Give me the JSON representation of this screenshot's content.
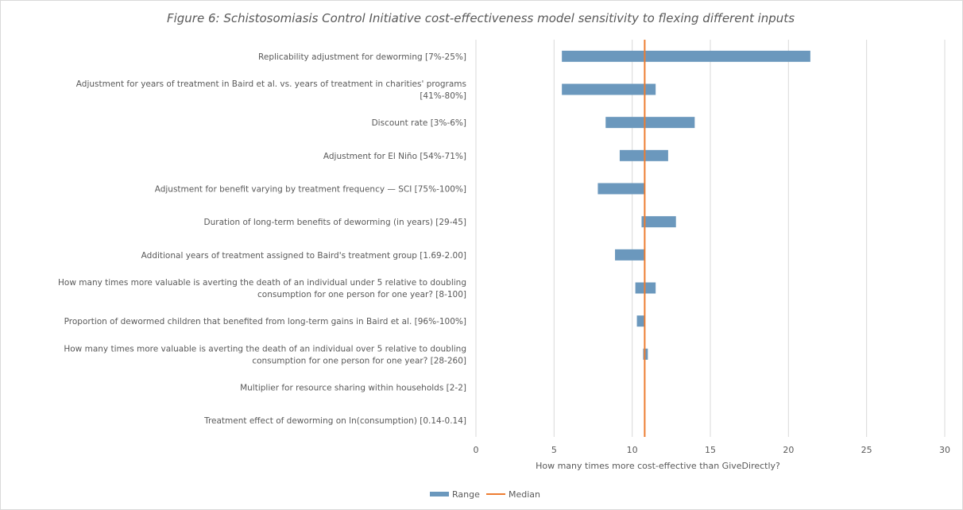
{
  "chart_data": {
    "type": "bar",
    "orientation": "horizontal",
    "style": "floating-range (tornado)",
    "title": "Figure 6: Schistosomiasis Control Initiative cost-effectiveness model sensitivity to flexing different inputs",
    "xlabel": "How many times more cost-effective  than GiveDirectly?",
    "ylabel": "",
    "xlim": [
      0,
      30
    ],
    "xticks": [
      0,
      5,
      10,
      15,
      20,
      25,
      30
    ],
    "grid": "vertical",
    "legend_position": "bottom",
    "median": 10.8,
    "categories": [
      "Replicability adjustment for deworming [7%-25%]",
      "Adjustment for years of treatment in Baird et al. vs. years of treatment in charities' programs [41%-80%]",
      "Discount rate [3%-6%]",
      "Adjustment for El Niño [54%-71%]",
      "Adjustment for benefit varying by treatment frequency — SCI [75%-100%]",
      "Duration of long-term benefits of deworming (in years) [29-45]",
      "Additional years of treatment assigned to Baird's treatment group [1.69-2.00]",
      "How many times more valuable is averting the death of an individual under 5 relative to doubling consumption for one person for one year? [8-100]",
      "Proportion of dewormed children that benefited from long-term gains in Baird et al. [96%-100%]",
      "How many times more valuable is averting the death of an individual over 5 relative to doubling consumption for one person for one year? [28-260]",
      "Multiplier for resource sharing within households [2-2]",
      "Treatment effect of deworming on ln(consumption) [0.14-0.14]"
    ],
    "series": [
      {
        "name": "Range",
        "color": "#6b98bd",
        "ranges": [
          [
            5.5,
            21.4
          ],
          [
            5.5,
            11.5
          ],
          [
            8.3,
            14.0
          ],
          [
            9.2,
            12.3
          ],
          [
            7.8,
            10.8
          ],
          [
            10.6,
            12.8
          ],
          [
            8.9,
            10.8
          ],
          [
            10.2,
            11.5
          ],
          [
            10.3,
            10.8
          ],
          [
            10.7,
            11.0
          ],
          [
            10.8,
            10.8
          ],
          [
            10.8,
            10.8
          ]
        ]
      },
      {
        "name": "Median",
        "color": "#ed7d31",
        "value": 10.8
      }
    ]
  }
}
